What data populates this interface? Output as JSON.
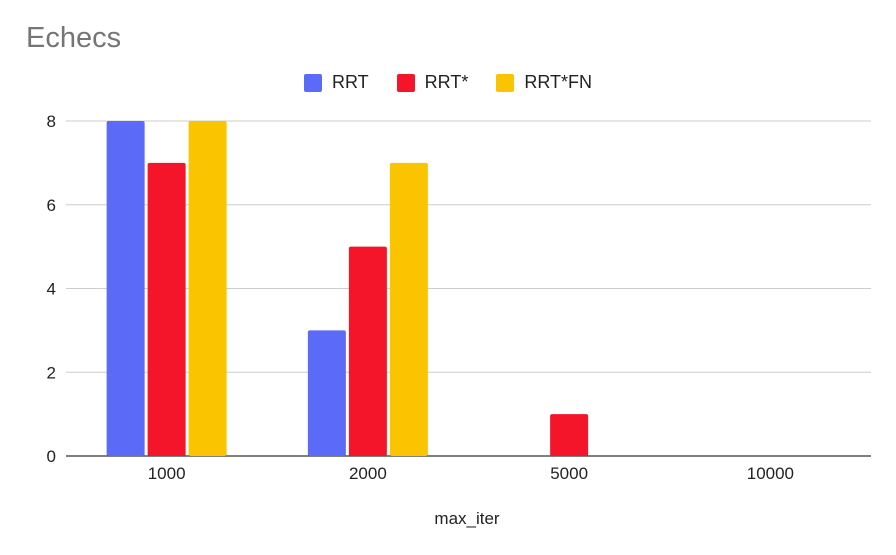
{
  "chart_data": {
    "type": "bar",
    "title": "Echecs",
    "xlabel": "max_iter",
    "ylabel": "",
    "categories": [
      "1000",
      "2000",
      "5000",
      "10000"
    ],
    "series": [
      {
        "name": "RRT",
        "color": "#5b6bf7",
        "values": [
          8,
          3,
          0,
          0
        ]
      },
      {
        "name": "RRT*",
        "color": "#f4152a",
        "values": [
          7,
          5,
          1,
          0
        ]
      },
      {
        "name": "RRT*FN",
        "color": "#fac400",
        "values": [
          8,
          7,
          0,
          0
        ]
      }
    ],
    "ylim": [
      0,
      8
    ],
    "yticks": [
      "0",
      "2",
      "4",
      "6",
      "8"
    ],
    "grid": true,
    "legend_position": "top-center"
  }
}
